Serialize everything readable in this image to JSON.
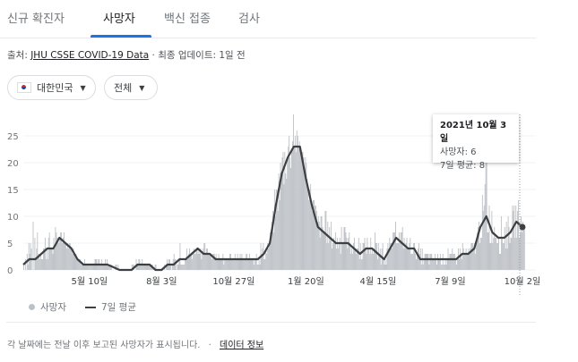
{
  "tabs": [
    {
      "label": "신규 확진자"
    },
    {
      "label": "사망자"
    },
    {
      "label": "백신 접종"
    },
    {
      "label": "검사"
    }
  ],
  "source": {
    "prefix": "출처: ",
    "link": "JHU CSSE COVID-19 Data",
    "suffix": " · 최종 업데이트: 1일 전"
  },
  "filters": {
    "country": "대한민국",
    "range": "전체"
  },
  "tooltip": {
    "date": "2021년 10월 3일",
    "deaths": "사망자: 6",
    "avg": "7일 평균: 8"
  },
  "legend": {
    "bars": "사망자",
    "line": "7일 평균"
  },
  "footer": {
    "text": "각 날짜에는 전날 이후 보고된 사망자가 표시됩니다.",
    "sep": "·",
    "link": "데이터 정보"
  },
  "colors": {
    "bar": "#bdc1c6",
    "line": "#3c4043",
    "accent": "#1a73e8"
  },
  "chart_data": {
    "type": "bar",
    "title": "사망자",
    "ylim": [
      0,
      29
    ],
    "yticks": [
      0,
      5,
      10,
      15,
      20,
      25
    ],
    "xticks": [
      "5월 10일",
      "8월 3일",
      "10월 27일",
      "1월 20일",
      "4월 15일",
      "7월 9일",
      "10월 2일"
    ],
    "xtick_week_index": [
      11,
      23,
      35,
      47,
      59,
      71,
      83
    ],
    "granularity": "weekly",
    "series": [
      {
        "name": "7일 평균",
        "type": "line",
        "values": [
          1,
          2,
          2,
          3,
          4,
          4,
          6,
          5,
          4,
          2,
          1,
          1,
          1,
          1,
          1,
          0.5,
          0,
          0,
          0,
          1,
          1,
          1,
          0,
          0,
          1,
          1,
          2,
          2,
          3,
          4,
          3,
          3,
          2,
          2,
          2,
          2,
          2,
          2,
          2,
          2,
          3,
          5,
          12,
          18,
          21,
          23,
          23,
          17,
          12,
          8,
          7,
          6,
          5,
          5,
          5,
          4,
          3,
          4,
          4,
          3,
          2,
          4,
          6,
          5,
          4,
          4,
          2,
          2,
          2,
          2,
          2,
          2,
          2,
          3,
          3,
          4,
          8,
          10,
          7,
          6,
          6,
          7,
          9,
          8
        ]
      },
      {
        "name": "사망자",
        "type": "bar",
        "peak_values": [
          4,
          11,
          7,
          6,
          9,
          8,
          8,
          6,
          5,
          2,
          2,
          2,
          2,
          2,
          2,
          1,
          1,
          0,
          1,
          2,
          2,
          1,
          1,
          1,
          2,
          3,
          5,
          5,
          5,
          5,
          6,
          4,
          3,
          3,
          3,
          3,
          3,
          3,
          3,
          5,
          6,
          8,
          18,
          25,
          29,
          29,
          25,
          20,
          16,
          12,
          11,
          10,
          9,
          8,
          8,
          7,
          6,
          7,
          7,
          6,
          4,
          7,
          9,
          8,
          7,
          6,
          5,
          4,
          4,
          4,
          4,
          4,
          4,
          5,
          5,
          7,
          13,
          21,
          12,
          11,
          13,
          10,
          16,
          9
        ]
      }
    ]
  }
}
